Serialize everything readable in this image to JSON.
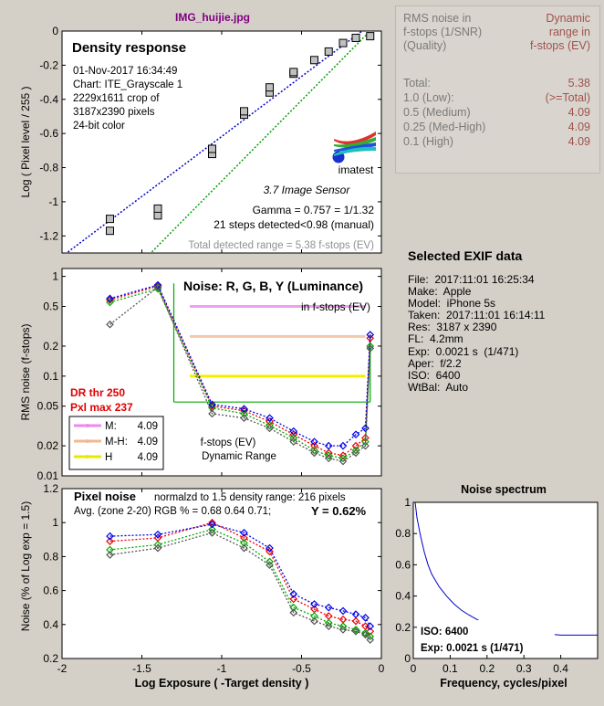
{
  "file_title": "IMG_huijie.jpg",
  "rms_table": {
    "header_left": [
      "RMS noise in",
      "f-stops (1/SNR)",
      "(Quality)"
    ],
    "header_right": [
      "Dynamic",
      "range in",
      "f-stops (EV)"
    ],
    "rows": [
      {
        "label": "Total:",
        "value": "5.38"
      },
      {
        "label": "1.0  (Low):",
        "value": "(>=Total)"
      },
      {
        "label": "0.5  (Medium)",
        "value": "4.09"
      },
      {
        "label": "0.25 (Med-High)",
        "value": "4.09"
      },
      {
        "label": "0.1  (High)",
        "value": "4.09"
      }
    ],
    "colors": {
      "left": "#7a7a7a",
      "right": "#a0524d"
    }
  },
  "exif": {
    "heading": "Selected EXIF data",
    "lines": [
      "File:  2017:11:01 16:25:34",
      "Make:  Apple",
      "Model:  iPhone 5s",
      "Taken:  2017:11:01 16:14:11",
      "Res:  3187 x 2390",
      "FL:  4.2mm",
      "Exp:  0.0021 s  (1/471)",
      "Aper:  f/2.2",
      "ISO:  6400",
      "WtBal:  Auto"
    ]
  },
  "chart_data": [
    {
      "id": "density",
      "type": "scatter",
      "title": "Density response",
      "ylabel": "Log ( Pixel level / 255 )",
      "xlabel": "",
      "xlim": [
        -2,
        0
      ],
      "ylim": [
        -1.3,
        0
      ],
      "yticks": [
        0,
        -0.2,
        -0.4,
        -0.6,
        -0.8,
        -1,
        -1.2
      ],
      "yticklabels": [
        "0",
        "-0.2",
        "-0.4",
        "-0.6",
        "-0.8",
        "-1",
        "-1.2"
      ],
      "info": [
        "01-Nov-2017 16:34:49",
        "Chart: ITE_Grayscale 1",
        "2229x1611 crop of",
        "3187x2390 pixels",
        "24-bit color"
      ],
      "logo_text": "imatest",
      "sensor_label": "3.7  Image Sensor",
      "gamma_text": "Gamma = 0.757 = 1/1.32",
      "steps_text": "21 steps detected<0.98 (manual)",
      "range_text": "Total detected range = 5.38 f-stops (EV)",
      "points": {
        "x": [
          -1.7,
          -1.7,
          -1.4,
          -1.4,
          -1.06,
          -1.06,
          -0.86,
          -0.86,
          -0.7,
          -0.7,
          -0.55,
          -0.55,
          -0.42,
          -0.33,
          -0.24,
          -0.16,
          -0.07
        ],
        "y": [
          -1.17,
          -1.1,
          -1.08,
          -1.04,
          -0.72,
          -0.69,
          -0.49,
          -0.47,
          -0.36,
          -0.33,
          -0.25,
          -0.24,
          -0.17,
          -0.12,
          -0.07,
          -0.04,
          -0.03
        ]
      },
      "fit_line": {
        "x": [
          -2.0,
          -0.05
        ],
        "y": [
          -1.32,
          0.05
        ],
        "color": "#0000cc"
      },
      "green_line": {
        "x": [
          -1.55,
          -0.05
        ],
        "y": [
          -1.4,
          0.02
        ],
        "color": "#00a000"
      }
    },
    {
      "id": "noise",
      "type": "line",
      "title": "Noise: R, G, B, Y (Luminance)",
      "subtitle": "in f-stops (EV)",
      "ylabel": "RMS noise (f-stops)",
      "xlim": [
        -2,
        0
      ],
      "yscale": "log",
      "ylim": [
        0.01,
        1.2
      ],
      "yticks": [
        1,
        0.5,
        0.2,
        0.1,
        0.05,
        0.02,
        0.01
      ],
      "yticklabels": [
        "1",
        "0.5",
        "0.2",
        "0.1",
        "0.05",
        "0.02",
        "0.01"
      ],
      "dr_thr": "DR thr 250",
      "pxl_max": "Pxl max 237",
      "legend": [
        {
          "label": "M:",
          "value": "4.09",
          "color": "#ee88ee"
        },
        {
          "label": "M-H:",
          "value": "4.09",
          "color": "#f0b890"
        },
        {
          "label": "H",
          "value": "4.09",
          "color": "#e8e800"
        }
      ],
      "dr_labels": [
        "f-stops (EV)",
        "Dynamic Range"
      ],
      "hlines": [
        {
          "y": 0.5,
          "x": [
            -1.2,
            -0.1
          ],
          "color": "#f0a0f0"
        },
        {
          "y": 0.25,
          "x": [
            -1.2,
            -0.1
          ],
          "color": "#f5c8a8"
        },
        {
          "y": 0.1,
          "x": [
            -1.2,
            -0.1
          ],
          "color": "#f0f000"
        }
      ],
      "green_bracket": {
        "x": [
          -1.3,
          -0.07
        ],
        "top": 0.85,
        "bottom": 0.055
      },
      "x": [
        -1.7,
        -1.4,
        -1.06,
        -0.86,
        -0.7,
        -0.55,
        -0.42,
        -0.33,
        -0.24,
        -0.16,
        -0.1,
        -0.07
      ],
      "series": [
        {
          "name": "R",
          "color": "#ee0000",
          "values": [
            0.58,
            0.8,
            0.05,
            0.045,
            0.035,
            0.026,
            0.02,
            0.017,
            0.016,
            0.02,
            0.024,
            0.24
          ]
        },
        {
          "name": "G",
          "color": "#00aa00",
          "values": [
            0.55,
            0.75,
            0.048,
            0.042,
            0.032,
            0.024,
            0.018,
            0.016,
            0.015,
            0.018,
            0.022,
            0.2
          ]
        },
        {
          "name": "B",
          "color": "#0000ee",
          "values": [
            0.6,
            0.82,
            0.052,
            0.047,
            0.038,
            0.028,
            0.022,
            0.02,
            0.02,
            0.026,
            0.03,
            0.26
          ]
        },
        {
          "name": "Y",
          "color": "#555555",
          "values": [
            0.33,
            0.78,
            0.042,
            0.038,
            0.03,
            0.022,
            0.017,
            0.015,
            0.014,
            0.017,
            0.02,
            0.19
          ]
        }
      ]
    },
    {
      "id": "pixelnoise",
      "type": "line",
      "title": "Pixel noise",
      "subtitle": "normalzd to 1.5 density range: 216 pixels",
      "avg_text": "Avg. (zone 2-20) RGB % = 0.68  0.64  0.71;",
      "y_text": "Y = 0.62%",
      "ylabel": "Noise (% of Log exp = 1.5)",
      "xlabel": "Log Exposure ( -Target density )",
      "xlim": [
        -2,
        0
      ],
      "ylim": [
        0.2,
        1.2
      ],
      "yticks": [
        1.2,
        1,
        0.8,
        0.6,
        0.4,
        0.2
      ],
      "yticklabels": [
        "1.2",
        "1",
        "0.8",
        "0.6",
        "0.4",
        "0.2"
      ],
      "xticks": [
        -2,
        -1.5,
        -1,
        -0.5,
        0
      ],
      "xticklabels": [
        "-2",
        "-1.5",
        "-1",
        "-0.5",
        "0"
      ],
      "x": [
        -1.7,
        -1.4,
        -1.06,
        -0.86,
        -0.7,
        -0.55,
        -0.42,
        -0.33,
        -0.24,
        -0.16,
        -0.1,
        -0.07
      ],
      "series": [
        {
          "name": "R",
          "color": "#ee0000",
          "values": [
            0.89,
            0.91,
            1.0,
            0.91,
            0.83,
            0.55,
            0.49,
            0.45,
            0.43,
            0.42,
            0.39,
            0.36
          ]
        },
        {
          "name": "G",
          "color": "#00aa00",
          "values": [
            0.84,
            0.87,
            0.96,
            0.88,
            0.77,
            0.5,
            0.45,
            0.41,
            0.39,
            0.37,
            0.35,
            0.33
          ]
        },
        {
          "name": "B",
          "color": "#0000ee",
          "values": [
            0.92,
            0.93,
            0.99,
            0.94,
            0.85,
            0.58,
            0.52,
            0.5,
            0.48,
            0.46,
            0.44,
            0.39
          ]
        },
        {
          "name": "Y",
          "color": "#555555",
          "values": [
            0.81,
            0.85,
            0.94,
            0.85,
            0.75,
            0.47,
            0.42,
            0.39,
            0.37,
            0.36,
            0.34,
            0.31
          ]
        }
      ]
    },
    {
      "id": "spectrum",
      "type": "line",
      "title": "Noise spectrum",
      "xlabel": "Frequency, cycles/pixel",
      "xlim": [
        0,
        0.5
      ],
      "ylim": [
        0,
        1
      ],
      "xticks": [
        0,
        0.1,
        0.2,
        0.3,
        0.4
      ],
      "xticklabels": [
        "0",
        "0.1",
        "0.2",
        "0.3",
        "0.4"
      ],
      "yticks": [
        0,
        0.2,
        0.4,
        0.6,
        0.8,
        1
      ],
      "yticklabels": [
        "0",
        "0.2",
        "0.4",
        "0.6",
        "0.8",
        "1"
      ],
      "iso_text": "ISO:   6400",
      "exp_text": "Exp:   0.0021 s  (1/471)",
      "x": [
        0.005,
        0.01,
        0.02,
        0.03,
        0.04,
        0.05,
        0.07,
        0.09,
        0.11,
        0.13,
        0.15,
        0.18,
        0.21,
        0.25,
        0.3,
        0.35,
        0.4,
        0.45,
        0.5
      ],
      "values": [
        1.0,
        0.9,
        0.78,
        0.68,
        0.6,
        0.54,
        0.46,
        0.4,
        0.35,
        0.31,
        0.28,
        0.24,
        0.21,
        0.19,
        0.17,
        0.16,
        0.15,
        0.15,
        0.15
      ],
      "color": "#0000cc"
    }
  ]
}
